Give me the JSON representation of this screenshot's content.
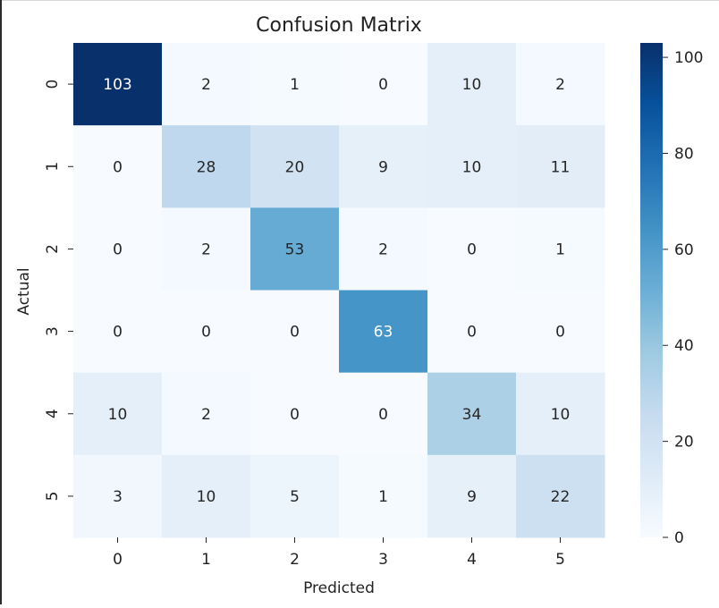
{
  "chart_data": {
    "type": "heatmap",
    "title": "Confusion Matrix",
    "xlabel": "Predicted",
    "ylabel": "Actual",
    "x_categories": [
      "0",
      "1",
      "2",
      "3",
      "4",
      "5"
    ],
    "y_categories": [
      "0",
      "1",
      "2",
      "3",
      "4",
      "5"
    ],
    "values": [
      [
        103,
        2,
        1,
        0,
        10,
        2
      ],
      [
        0,
        28,
        20,
        9,
        10,
        11
      ],
      [
        0,
        2,
        53,
        2,
        0,
        1
      ],
      [
        0,
        0,
        0,
        63,
        0,
        0
      ],
      [
        10,
        2,
        0,
        0,
        34,
        10
      ],
      [
        3,
        10,
        5,
        1,
        9,
        22
      ]
    ],
    "colormap": "Blues",
    "vmin": 0,
    "vmax": 103,
    "colorbar_ticks": [
      0,
      20,
      40,
      60,
      80,
      100
    ],
    "annotations": true,
    "grid": false
  }
}
